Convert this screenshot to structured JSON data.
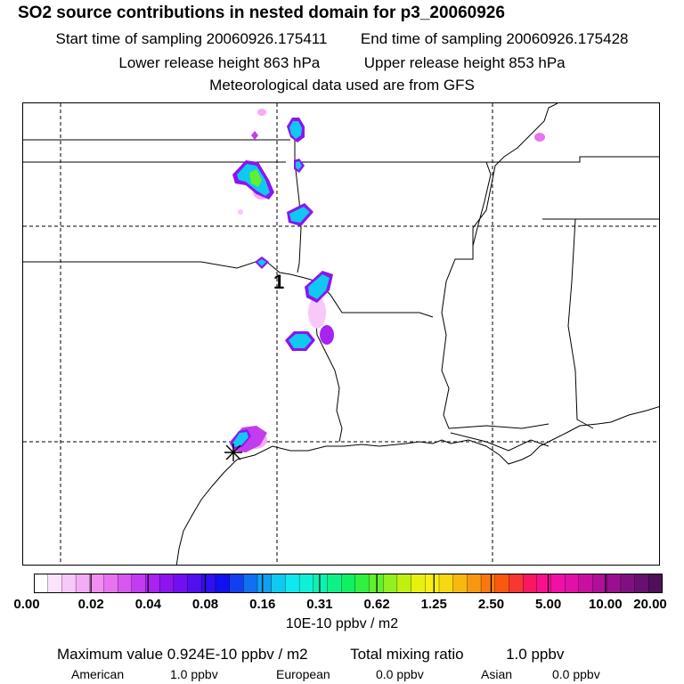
{
  "header": {
    "title": "SO2 source contributions in nested domain for p3_20060926",
    "start_label": "Start time of sampling 20060926.175411",
    "end_label": "End time of sampling 20060926.175428",
    "lower_label": "Lower release height  863 hPa",
    "upper_label": "Upper release height  853 hPa",
    "met_label": "Meteorological data used are from GFS"
  },
  "map": {
    "site_marker_label": "1",
    "source_icon": "asterisk-icon"
  },
  "colorbar": {
    "tick_labels": [
      "0.00",
      "0.02",
      "0.04",
      "0.08",
      "0.16",
      "0.31",
      "0.62",
      "1.25",
      "2.50",
      "5.00",
      "10.00",
      "20.00"
    ],
    "colors": [
      "#ffffff",
      "#fce4fc",
      "#f8c8f8",
      "#f4acf4",
      "#ef8ff0",
      "#e773f0",
      "#d757f0",
      "#c23cf0",
      "#a822f0",
      "#8c14f0",
      "#7010f0",
      "#5010f0",
      "#3010f0",
      "#1010f0",
      "#1040f0",
      "#1070f0",
      "#10a0f0",
      "#10c8f0",
      "#10e8f0",
      "#10f0d8",
      "#10f0b0",
      "#10f088",
      "#10f060",
      "#30f040",
      "#60f030",
      "#90f020",
      "#c0f010",
      "#e8f010",
      "#f8f010",
      "#f8d810",
      "#f8b810",
      "#f89810",
      "#f87810",
      "#f85810",
      "#f83830",
      "#f81860",
      "#f81090",
      "#f010a8",
      "#e010a8",
      "#c810a0",
      "#b01098",
      "#981090",
      "#801080",
      "#681070",
      "#501058"
    ],
    "units": "10E-10 ppbv / m2"
  },
  "summary": {
    "max_label": "Maximum value  0.924E-10 ppbv / m2",
    "total_label": "Total mixing ratio",
    "total_value": "1.0 ppbv",
    "american_label": "American",
    "american_value": "1.0 ppbv",
    "european_label": "European",
    "european_value": "0.0 ppbv",
    "asian_label": "Asian",
    "asian_value": "0.0 ppbv"
  }
}
